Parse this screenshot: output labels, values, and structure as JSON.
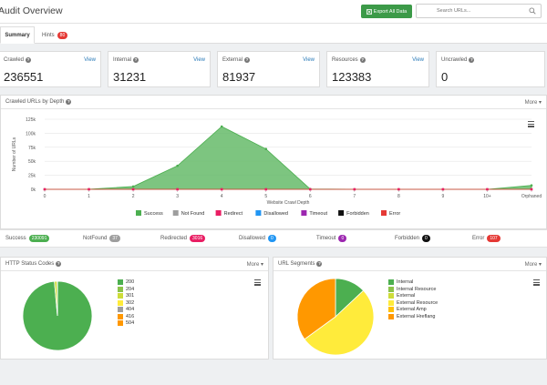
{
  "header": {
    "title": "Audit Overview",
    "export_label": "Export All Data",
    "search_placeholder": "Search URLs..."
  },
  "tabs": [
    {
      "label": "Summary"
    },
    {
      "label": "Hints",
      "badge": "80"
    }
  ],
  "stats": [
    {
      "label": "Crawled",
      "value": "236551",
      "view": "View"
    },
    {
      "label": "Internal",
      "value": "31231",
      "view": "View"
    },
    {
      "label": "External",
      "value": "81937",
      "view": "View"
    },
    {
      "label": "Resources",
      "value": "123383",
      "view": "View"
    },
    {
      "label": "Uncrawled",
      "value": "0"
    }
  ],
  "depth_panel": {
    "title": "Crawled URLs by Depth",
    "more": "More"
  },
  "status_counts": [
    {
      "label": "Success",
      "value": "230091",
      "color": "#4caf50"
    },
    {
      "label": "NotFound",
      "value": "37",
      "color": "#9e9e9e"
    },
    {
      "label": "Redirected",
      "value": "3016",
      "color": "#e91e63"
    },
    {
      "label": "Disallowed",
      "value": "0",
      "color": "#2196f3"
    },
    {
      "label": "Timeout",
      "value": "0",
      "color": "#9c27b0"
    },
    {
      "label": "Forbidden",
      "value": "0",
      "color": "#111111"
    },
    {
      "label": "Error",
      "value": "107",
      "color": "#e53935"
    }
  ],
  "http_panel": {
    "title": "HTTP Status Codes",
    "more": "More"
  },
  "segments_panel": {
    "title": "URL Segments",
    "more": "More"
  },
  "chart_data": [
    {
      "type": "area",
      "xlabel": "Website Crawl Depth",
      "ylabel": "Number of URLs",
      "categories": [
        "0",
        "1",
        "2",
        "3",
        "4",
        "5",
        "6",
        "7",
        "8",
        "9",
        "10+",
        "Orphaned"
      ],
      "y_ticks": [
        "0k",
        "25k",
        "50k",
        "75k",
        "100k",
        "125k"
      ],
      "ylim": [
        0,
        125000
      ],
      "series": [
        {
          "name": "Success",
          "color": "#4caf50",
          "values": [
            1,
            200,
            5000,
            42000,
            112000,
            72000,
            500,
            0,
            0,
            0,
            0,
            7000
          ]
        },
        {
          "name": "Not Found",
          "color": "#9e9e9e",
          "values": [
            0,
            0,
            0,
            0,
            0,
            0,
            0,
            0,
            0,
            0,
            0,
            0
          ]
        },
        {
          "name": "Redirect",
          "color": "#e91e63",
          "values": [
            0,
            0,
            0,
            0,
            0,
            0,
            0,
            0,
            0,
            0,
            0,
            0
          ]
        },
        {
          "name": "Disallowed",
          "color": "#2196f3",
          "values": [
            0,
            0,
            0,
            0,
            0,
            0,
            0,
            0,
            0,
            0,
            0,
            0
          ]
        },
        {
          "name": "Timeout",
          "color": "#9c27b0",
          "values": [
            0,
            0,
            0,
            0,
            0,
            0,
            0,
            0,
            0,
            0,
            0,
            0
          ]
        },
        {
          "name": "Forbidden",
          "color": "#111111",
          "values": [
            0,
            0,
            0,
            0,
            0,
            0,
            0,
            0,
            0,
            0,
            0,
            0
          ]
        },
        {
          "name": "Error",
          "color": "#e53935",
          "values": [
            0,
            0,
            0,
            0,
            0,
            0,
            0,
            0,
            0,
            0,
            0,
            0
          ]
        }
      ],
      "legend": "bottom",
      "grid": true
    },
    {
      "type": "pie",
      "labels": [
        "200",
        "204",
        "301",
        "302",
        "404",
        "416",
        "504"
      ],
      "colors": [
        "#4caf50",
        "#8bc34a",
        "#cddc39",
        "#ffeb3b",
        "#9e9e9e",
        "#ff9800",
        "#ff9800"
      ],
      "values": [
        98.6,
        0.0,
        1.3,
        0.0,
        0.05,
        0.0,
        0.05
      ],
      "legend": "right"
    },
    {
      "type": "pie",
      "labels": [
        "Internal",
        "Internal Resource",
        "External",
        "External Resource",
        "External Amp",
        "External Hreflang"
      ],
      "colors": [
        "#4caf50",
        "#8bc34a",
        "#cddc39",
        "#ffeb3b",
        "#ffc107",
        "#ff9800"
      ],
      "values": [
        13,
        0,
        0,
        52,
        0,
        35
      ],
      "legend": "right"
    }
  ]
}
